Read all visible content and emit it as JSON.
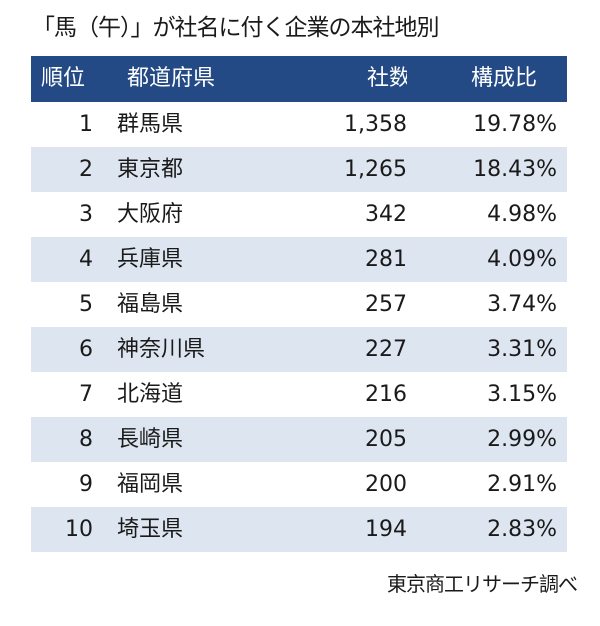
{
  "title": "「馬（午）」が社名に付く企業の本社地別",
  "header": {
    "rank": "順位",
    "prefecture": "都道府県",
    "count": "社数",
    "ratio": "構成比"
  },
  "colors": {
    "header_bg": "#244a86",
    "stripe": "#dde5f0"
  },
  "chart_data": {
    "type": "table",
    "title": "「馬（午）」が社名に付く企業の本社地別",
    "columns": [
      "順位",
      "都道府県",
      "社数",
      "構成比"
    ],
    "rows": [
      {
        "rank": "1",
        "prefecture": "群馬県",
        "count": "1,358",
        "ratio": "19.78%"
      },
      {
        "rank": "2",
        "prefecture": "東京都",
        "count": "1,265",
        "ratio": "18.43%"
      },
      {
        "rank": "3",
        "prefecture": "大阪府",
        "count": "342",
        "ratio": "4.98%"
      },
      {
        "rank": "4",
        "prefecture": "兵庫県",
        "count": "281",
        "ratio": "4.09%"
      },
      {
        "rank": "5",
        "prefecture": "福島県",
        "count": "257",
        "ratio": "3.74%"
      },
      {
        "rank": "6",
        "prefecture": "神奈川県",
        "count": "227",
        "ratio": "3.31%"
      },
      {
        "rank": "7",
        "prefecture": "北海道",
        "count": "216",
        "ratio": "3.15%"
      },
      {
        "rank": "8",
        "prefecture": "長崎県",
        "count": "205",
        "ratio": "2.99%"
      },
      {
        "rank": "9",
        "prefecture": "福岡県",
        "count": "200",
        "ratio": "2.91%"
      },
      {
        "rank": "10",
        "prefecture": "埼玉県",
        "count": "194",
        "ratio": "2.83%"
      }
    ]
  },
  "source": "東京商工リサーチ調べ"
}
